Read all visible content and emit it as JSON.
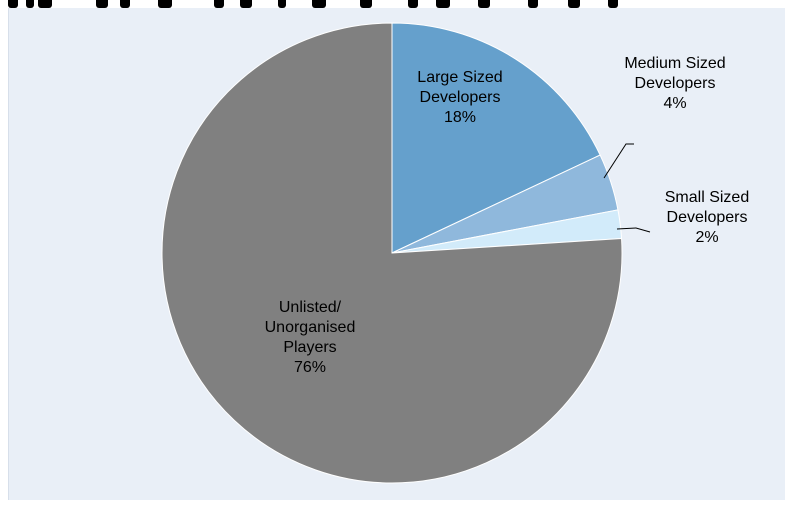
{
  "chart_data": {
    "type": "pie",
    "title": "",
    "slices": [
      {
        "label_lines": [
          "Large Sized",
          "Developers",
          "18%"
        ],
        "value": 18,
        "color": "#65a0cc"
      },
      {
        "label_lines": [
          "Medium Sized",
          "Developers",
          "4%"
        ],
        "value": 4,
        "color": "#8fb8dc"
      },
      {
        "label_lines": [
          "Small Sized",
          "Developers",
          "2%"
        ],
        "value": 2,
        "color": "#d2ebfa"
      },
      {
        "label_lines": [
          "Unlisted/",
          "Unorganised",
          "Players",
          "76%"
        ],
        "value": 76,
        "color": "#808080"
      }
    ],
    "start_angle_deg": 0,
    "direction": "clockwise",
    "legend": "none",
    "background": "#e9eff7"
  }
}
